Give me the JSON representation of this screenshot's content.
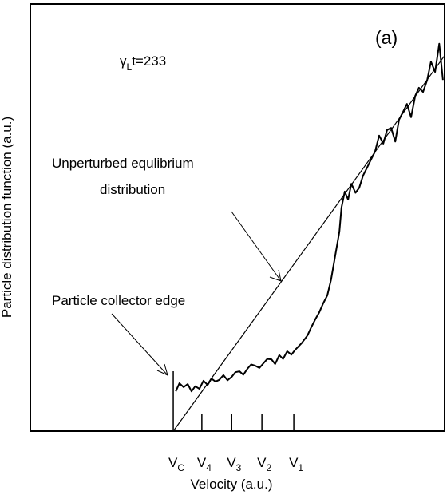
{
  "chart_data": {
    "type": "line",
    "panel_label": "(a)",
    "xlabel": "Velocity (a.u.)",
    "ylabel": "Particle distribution function (a.u.)",
    "time_label": {
      "symbol": "γ",
      "subscript": "L",
      "text": "t=233"
    },
    "annotations": [
      "Unperturbed equlibrium",
      "distribution",
      "Particle collector edge"
    ],
    "xlim": [
      0,
      100
    ],
    "ylim": [
      0,
      100
    ],
    "xticks": [
      {
        "value": 34.5,
        "label": "V",
        "subscript": "C"
      },
      {
        "value": 41.4,
        "label": "V",
        "subscript": "4"
      },
      {
        "value": 48.6,
        "label": "V",
        "subscript": "3"
      },
      {
        "value": 55.9,
        "label": "V",
        "subscript": "2"
      },
      {
        "value": 63.6,
        "label": "V",
        "subscript": "1"
      }
    ],
    "series": [
      {
        "color": "#000000",
        "x": [
          34.5,
          100
        ],
        "values": [
          0,
          87.9
        ]
      },
      {
        "color": "#000000",
        "x": [
          35.1,
          36.0,
          37.0,
          38.0,
          38.9,
          39.8,
          40.8,
          41.8,
          42.8,
          43.7,
          44.7,
          45.6,
          46.6,
          47.6,
          48.6,
          49.5,
          50.5,
          51.4,
          52.4,
          53.3,
          54.3,
          55.3,
          56.3,
          57.2,
          58.2,
          59.1,
          60.1,
          61.0,
          62.0,
          63.0,
          64.0,
          65.5,
          66.9,
          67.8,
          68.8,
          69.7,
          70.7,
          71.7,
          72.6,
          73.6,
          74.6,
          75.1,
          75.9,
          76.7,
          77.5,
          78.5,
          79.4,
          80.3,
          81.3,
          82.2,
          83.2,
          84.2,
          85.2,
          86.1,
          87.1,
          88.1,
          89.0,
          90.0,
          90.9,
          91.9,
          92.9,
          93.8,
          94.8,
          95.8,
          96.7,
          97.7,
          98.7,
          99.6
        ],
        "values": [
          9.3,
          11.2,
          10.3,
          11.0,
          9.3,
          10.5,
          9.9,
          11.8,
          10.8,
          12.3,
          11.6,
          12.0,
          13.1,
          11.9,
          12.7,
          13.8,
          14.0,
          13.2,
          14.6,
          15.6,
          15.3,
          14.8,
          15.9,
          16.9,
          16.8,
          15.7,
          17.8,
          16.9,
          18.7,
          17.9,
          19.1,
          20.6,
          22.4,
          24.3,
          26.2,
          27.7,
          29.9,
          31.8,
          35.5,
          41.1,
          46.7,
          52.3,
          56.1,
          54.2,
          57.9,
          55.8,
          57.0,
          59.8,
          61.7,
          63.5,
          65.4,
          69.2,
          67.3,
          70.5,
          71.0,
          67.8,
          72.9,
          74.8,
          76.6,
          73.5,
          78.5,
          80.4,
          79.4,
          82.2,
          86.5,
          84.1,
          90.7,
          82.2
        ]
      }
    ]
  }
}
